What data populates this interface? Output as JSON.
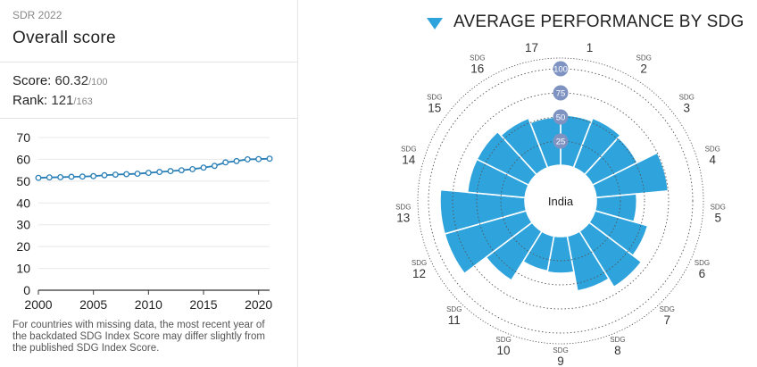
{
  "left_panel": {
    "report": "SDR 2022",
    "title": "Overall score",
    "score_label": "Score:",
    "score_value": "60.32",
    "score_max": "/100",
    "rank_label": "Rank:",
    "rank_value": "121",
    "rank_max": "/163",
    "note": "For countries with missing data, the most recent year of the backdated SDG Index Score may differ slightly from the published SDG Index Score."
  },
  "right_panel": {
    "title": "AVERAGE PERFORMANCE BY SDG",
    "center_label": "India",
    "sdg_prefix": "SDG"
  },
  "colors": {
    "line": "#2a7fb7",
    "bar": "#2ea3dc",
    "ring_badge": "#7f93c2",
    "triangle": "#2ea3dc"
  },
  "chart_data": [
    {
      "type": "line",
      "x": [
        2000,
        2001,
        2002,
        2003,
        2004,
        2005,
        2006,
        2007,
        2008,
        2009,
        2010,
        2011,
        2012,
        2013,
        2014,
        2015,
        2016,
        2017,
        2018,
        2019,
        2020,
        2021
      ],
      "y": [
        51.5,
        51.7,
        51.8,
        52.0,
        52.1,
        52.3,
        52.7,
        53.0,
        53.2,
        53.4,
        53.8,
        54.2,
        54.6,
        55.0,
        55.5,
        56.2,
        57.0,
        58.6,
        59.2,
        60.0,
        60.1,
        60.3
      ],
      "xticks": [
        "2000",
        "2005",
        "2010",
        "2015",
        "2020"
      ],
      "yticks": [
        "0",
        "10",
        "20",
        "30",
        "40",
        "50",
        "60",
        "70"
      ],
      "xlim": [
        2000,
        2021
      ],
      "ylim": [
        0,
        70
      ]
    },
    {
      "type": "polar-bar",
      "categories": [
        "1",
        "2",
        "3",
        "4",
        "5",
        "6",
        "7",
        "8",
        "9",
        "10",
        "11",
        "12",
        "13",
        "14",
        "15",
        "16",
        "17"
      ],
      "values": [
        52,
        55,
        52,
        75,
        42,
        57,
        68,
        58,
        38,
        37,
        60,
        88,
        88,
        60,
        60,
        55,
        50
      ],
      "rings": [
        "25",
        "50",
        "75",
        "100"
      ],
      "rmax": 100,
      "center": "India"
    }
  ]
}
